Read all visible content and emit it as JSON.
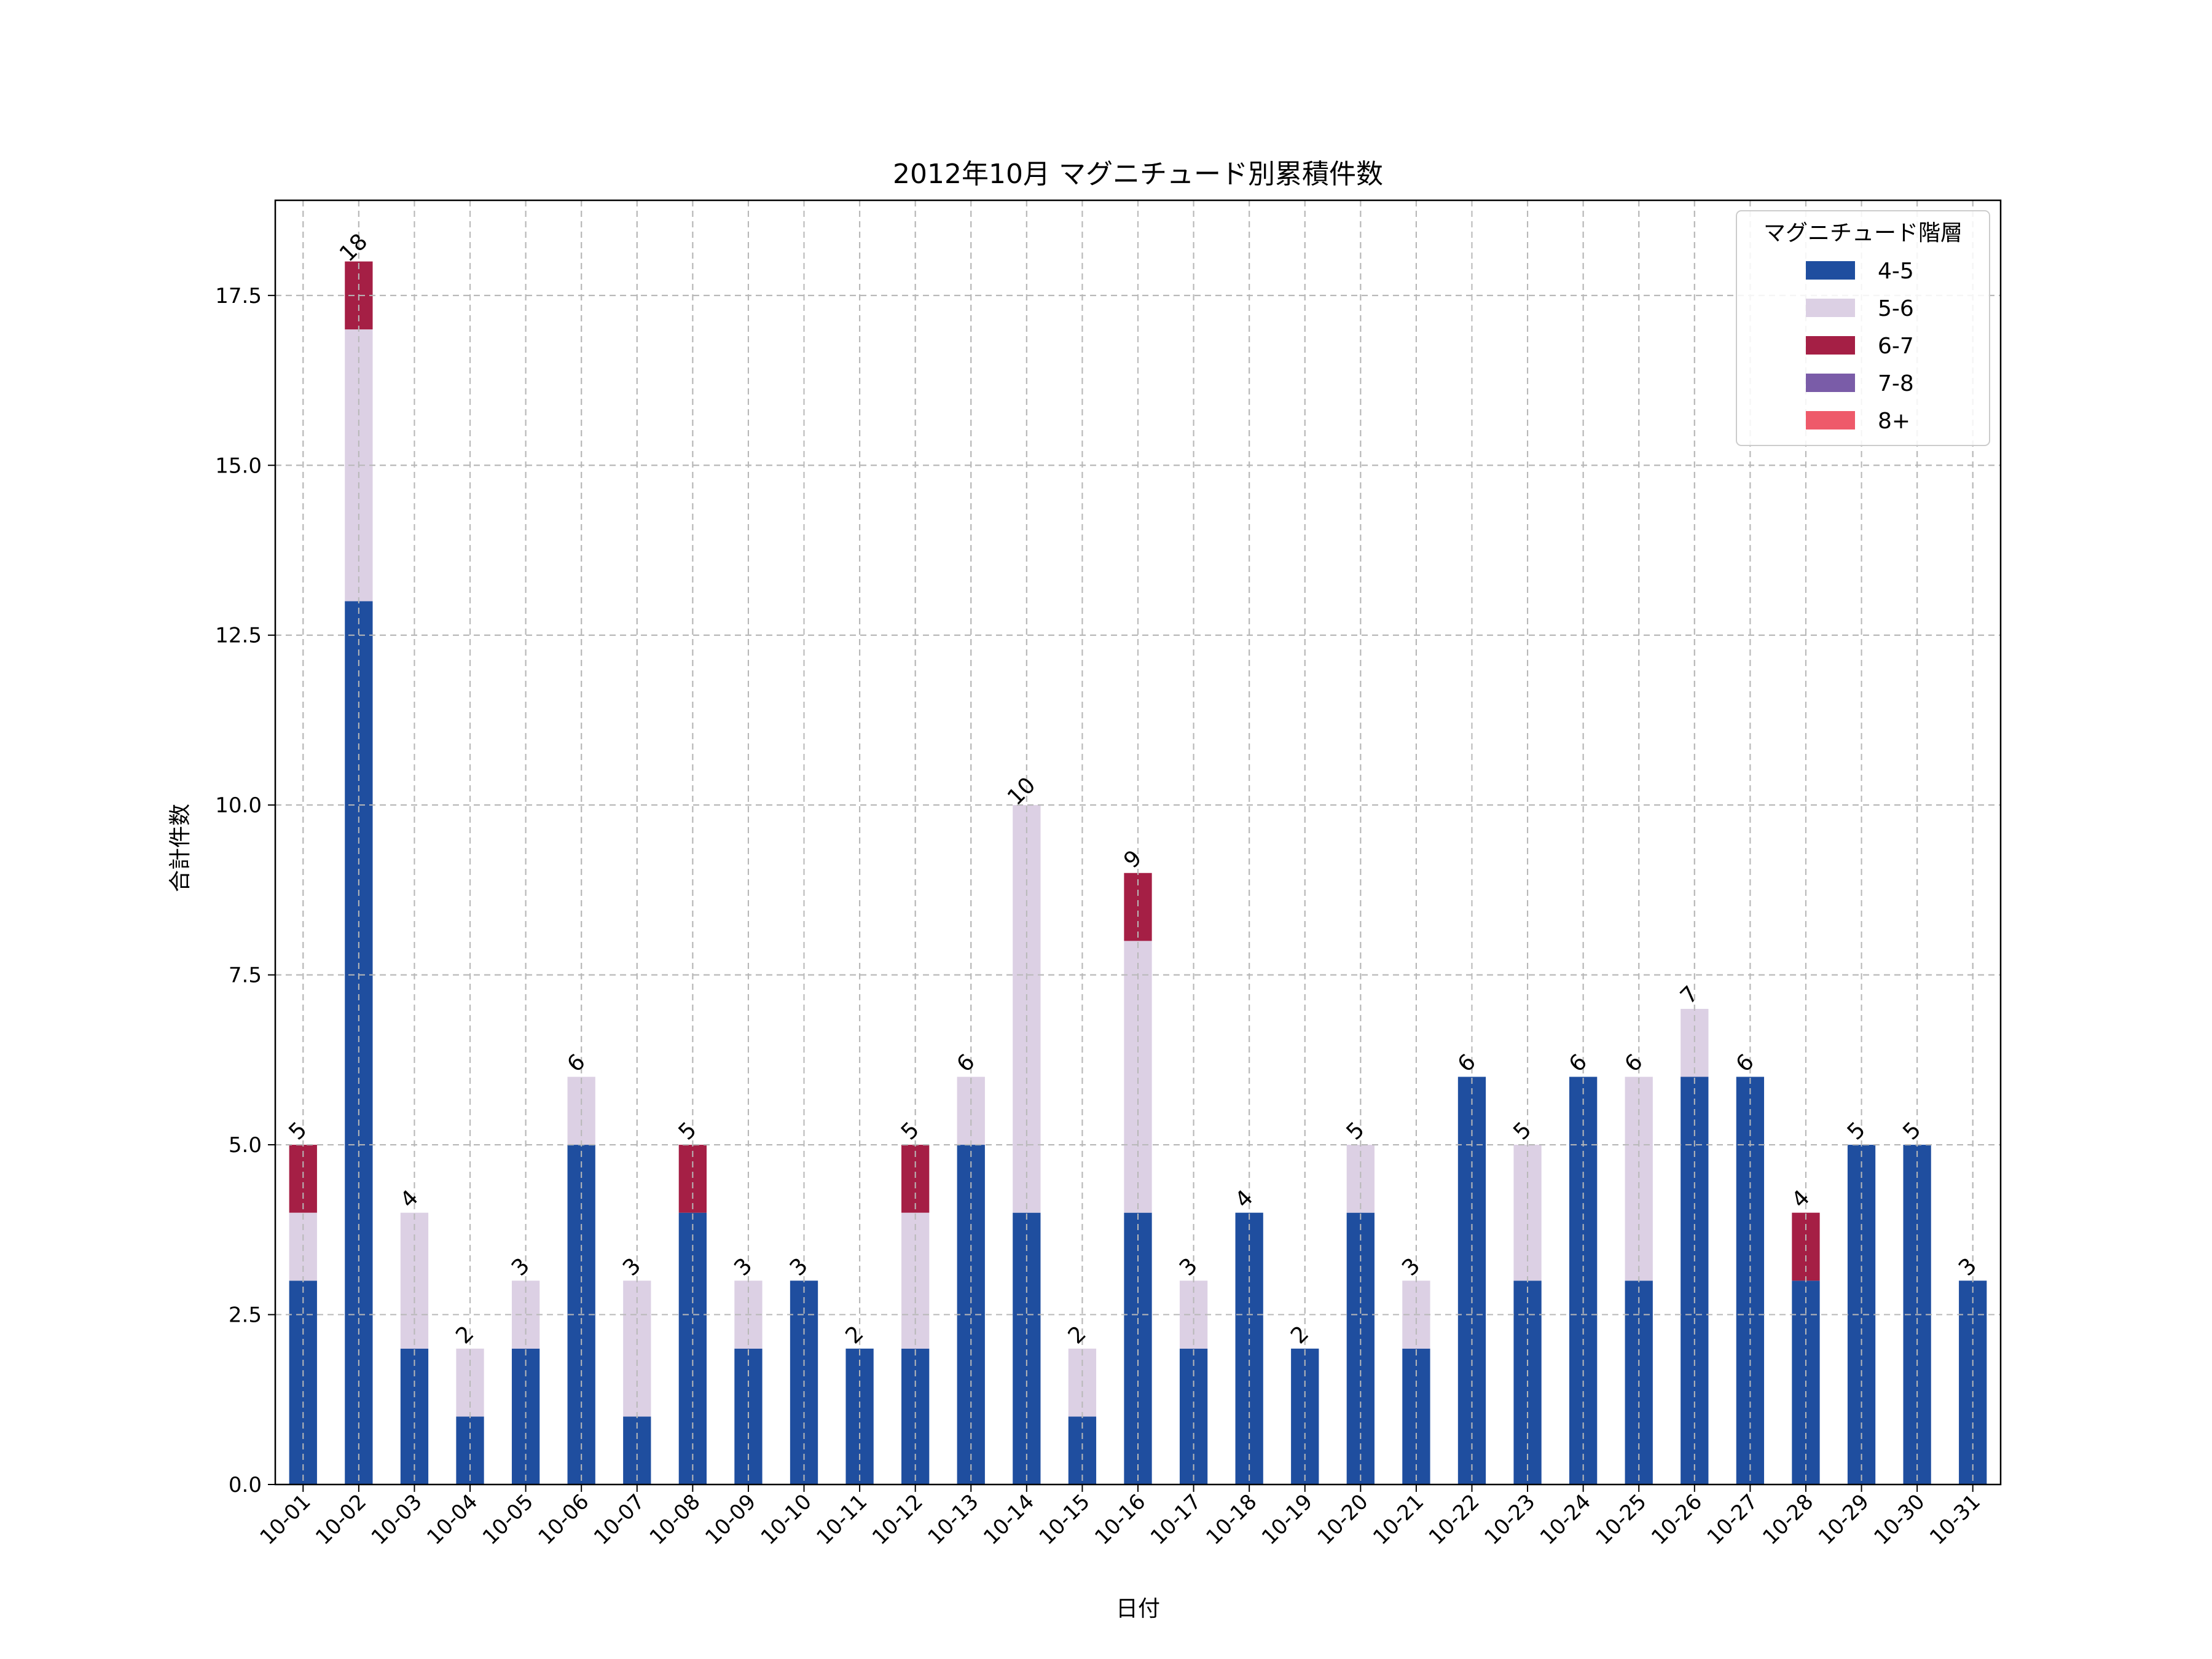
{
  "chart_data": {
    "type": "bar",
    "stacked": true,
    "title": "2012年10月 マグニチュード別累積件数",
    "xlabel": "日付",
    "ylabel": "合計件数",
    "ylim": [
      0,
      18.9
    ],
    "yticks": [
      "0.0",
      "2.5",
      "5.0",
      "7.5",
      "10.0",
      "12.5",
      "15.0",
      "17.5"
    ],
    "grid": true,
    "legend_title": "マグニチュード階層",
    "legend_position": "top-right",
    "categories": [
      "10-01",
      "10-02",
      "10-03",
      "10-04",
      "10-05",
      "10-06",
      "10-07",
      "10-08",
      "10-09",
      "10-10",
      "10-11",
      "10-12",
      "10-13",
      "10-14",
      "10-15",
      "10-16",
      "10-17",
      "10-18",
      "10-19",
      "10-20",
      "10-21",
      "10-22",
      "10-23",
      "10-24",
      "10-25",
      "10-26",
      "10-27",
      "10-28",
      "10-29",
      "10-30",
      "10-31"
    ],
    "series": [
      {
        "name": "4-5",
        "color": "#1f4e9f",
        "values": [
          3,
          13,
          2,
          1,
          2,
          5,
          1,
          4,
          2,
          3,
          2,
          2,
          5,
          4,
          1,
          4,
          2,
          4,
          2,
          4,
          2,
          6,
          3,
          6,
          3,
          6,
          6,
          3,
          5,
          5,
          3
        ]
      },
      {
        "name": "5-6",
        "color": "#dcd0e4",
        "values": [
          1,
          4,
          2,
          1,
          1,
          1,
          2,
          0,
          1,
          0,
          0,
          2,
          1,
          6,
          1,
          4,
          1,
          0,
          0,
          1,
          1,
          0,
          2,
          0,
          3,
          1,
          0,
          0,
          0,
          0,
          0
        ]
      },
      {
        "name": "6-7",
        "color": "#a51f45",
        "values": [
          1,
          1,
          0,
          0,
          0,
          0,
          0,
          1,
          0,
          0,
          0,
          1,
          0,
          0,
          0,
          1,
          0,
          0,
          0,
          0,
          0,
          0,
          0,
          0,
          0,
          0,
          0,
          1,
          0,
          0,
          0
        ]
      },
      {
        "name": "7-8",
        "color": "#7a5ca8",
        "values": [
          0,
          0,
          0,
          0,
          0,
          0,
          0,
          0,
          0,
          0,
          0,
          0,
          0,
          0,
          0,
          0,
          0,
          0,
          0,
          0,
          0,
          0,
          0,
          0,
          0,
          0,
          0,
          0,
          0,
          0,
          0
        ]
      },
      {
        "name": "8+",
        "color": "#ee5a6a",
        "values": [
          0,
          0,
          0,
          0,
          0,
          0,
          0,
          0,
          0,
          0,
          0,
          0,
          0,
          0,
          0,
          0,
          0,
          0,
          0,
          0,
          0,
          0,
          0,
          0,
          0,
          0,
          0,
          0,
          0,
          0,
          0
        ]
      }
    ],
    "totals": [
      "5",
      "18",
      "4",
      "2",
      "3",
      "6",
      "3",
      "5",
      "3",
      "3",
      "2",
      "5",
      "6",
      "10",
      "2",
      "9",
      "3",
      "4",
      "2",
      "5",
      "3",
      "6",
      "5",
      "6",
      "6",
      "7",
      "6",
      "4",
      "5",
      "5",
      "3"
    ]
  }
}
